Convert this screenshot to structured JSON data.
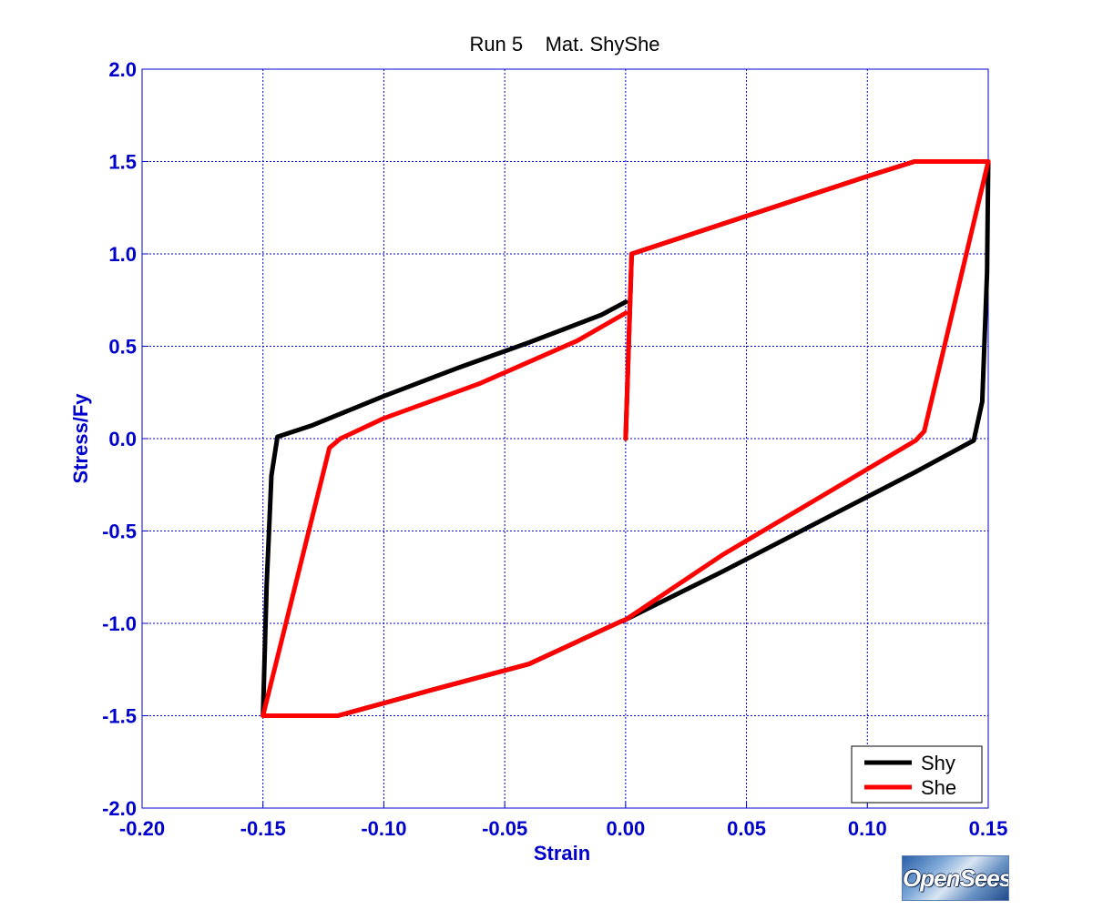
{
  "chart_data": {
    "type": "line",
    "title": "Run 5    Mat. ShyShe",
    "xlabel": "Strain",
    "ylabel": "Stress/Fy",
    "xlim": [
      -0.2,
      0.15
    ],
    "ylim": [
      -2.0,
      2.0
    ],
    "xticks": [
      -0.2,
      -0.15,
      -0.1,
      -0.05,
      0.0,
      0.05,
      0.1,
      0.15
    ],
    "yticks": [
      -2.0,
      -1.5,
      -1.0,
      -0.5,
      0.0,
      0.5,
      1.0,
      1.5,
      2.0
    ],
    "xtick_labels": [
      "-0.20",
      "-0.15",
      "-0.10",
      "-0.05",
      "0.00",
      "0.05",
      "0.10",
      "0.15"
    ],
    "ytick_labels": [
      "-2.0",
      "-1.5",
      "-1.0",
      "-0.5",
      "0.0",
      "0.5",
      "1.0",
      "1.5",
      "2.0"
    ],
    "grid": true,
    "legend_position": "bottom-right",
    "colors": {
      "axis_text": "#0000cc",
      "grid": "#0000cc",
      "frame": "#0000cc"
    },
    "series": [
      {
        "name": "Shy",
        "color": "#000000",
        "x": [
          0.0,
          0.0025,
          0.1,
          0.1195,
          0.15,
          0.1495,
          0.1475,
          0.144,
          0.12,
          0.08,
          0.04,
          0.0,
          -0.002,
          -0.04,
          -0.08,
          -0.119,
          -0.15,
          -0.1485,
          -0.1465,
          -0.144,
          -0.13,
          -0.1,
          -0.07,
          -0.04,
          -0.01,
          0.0
        ],
        "y": [
          0.0,
          1.0,
          1.42,
          1.5,
          1.5,
          0.9,
          0.2,
          -0.01,
          -0.18,
          -0.45,
          -0.72,
          -0.98,
          -0.99,
          -1.22,
          -1.36,
          -1.5,
          -1.5,
          -0.8,
          -0.2,
          0.01,
          0.07,
          0.23,
          0.38,
          0.52,
          0.67,
          0.74
        ]
      },
      {
        "name": "She",
        "color": "#ff0000",
        "x": [
          0.0,
          0.0025,
          0.1,
          0.1195,
          0.15,
          0.1235,
          0.12,
          0.08,
          0.04,
          0.0,
          -0.002,
          -0.04,
          -0.08,
          -0.119,
          -0.15,
          -0.1225,
          -0.118,
          -0.1,
          -0.06,
          -0.02,
          0.0
        ],
        "y": [
          0.0,
          1.0,
          1.42,
          1.5,
          1.5,
          0.04,
          -0.01,
          -0.32,
          -0.63,
          -0.98,
          -0.99,
          -1.22,
          -1.36,
          -1.5,
          -1.5,
          -0.05,
          0.0,
          0.11,
          0.3,
          0.53,
          0.68
        ]
      }
    ]
  },
  "logo": {
    "text": "OpenSees"
  }
}
